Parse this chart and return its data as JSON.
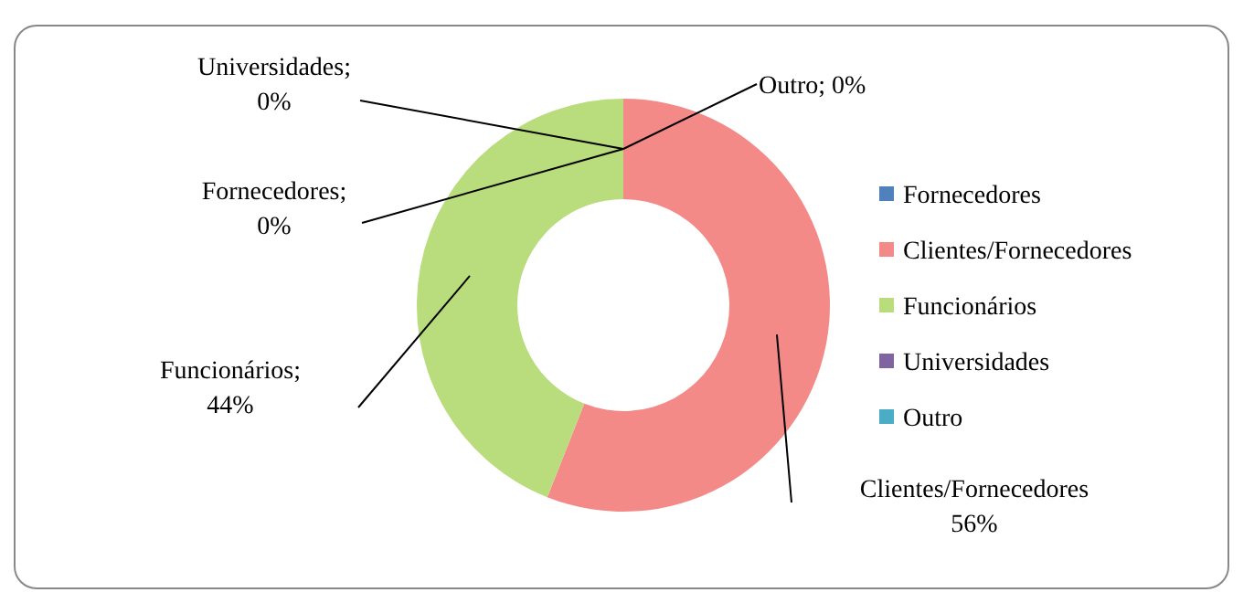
{
  "chart_data": {
    "type": "donut",
    "categories": [
      "Fornecedores",
      "Clientes/Fornecedores",
      "Funcionários",
      "Universidades",
      "Outro"
    ],
    "values": [
      0,
      56,
      44,
      0,
      0
    ],
    "colors": [
      "#4f81bd",
      "#f48a88",
      "#b9dc7c",
      "#8064a2",
      "#4bacc6"
    ],
    "value_labels": [
      "Fornecedores;\n0%",
      "Clientes/Fornecedores\n56%",
      "Funcionários;\n44%",
      "Universidades;\n0%",
      "Outro; 0%"
    ],
    "legend": "right"
  }
}
